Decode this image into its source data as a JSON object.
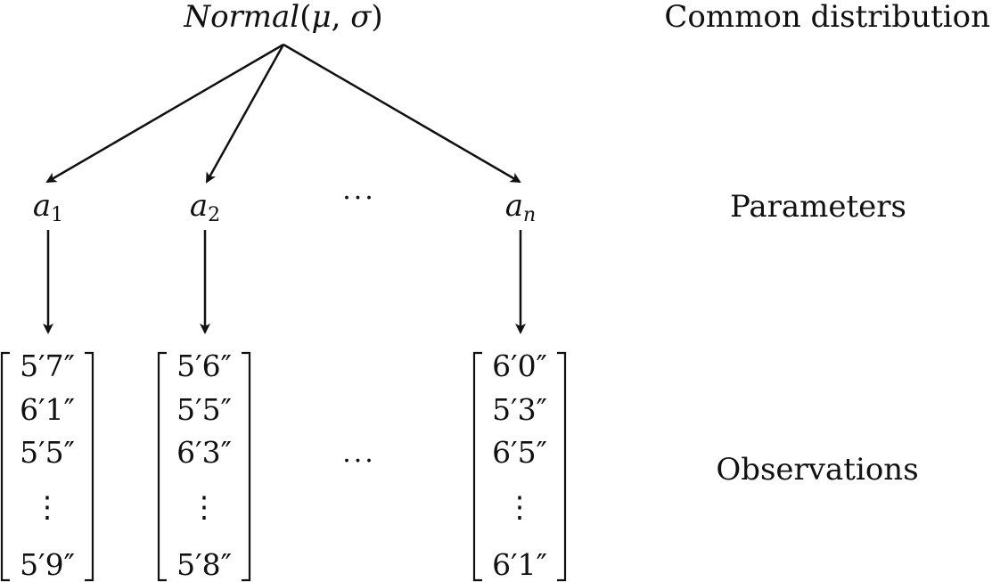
{
  "top_node": {
    "func": "Normal",
    "open": "(",
    "mu": "μ",
    "comma": ",",
    "sigma": "σ",
    "close": ")"
  },
  "row_labels": {
    "common": "Common distribution",
    "parameters": "Parameters",
    "observations": "Observations"
  },
  "parameters": [
    {
      "base": "a",
      "sub": "1"
    },
    {
      "base": "a",
      "sub": "2"
    },
    {
      "base": "a",
      "sub": "n"
    }
  ],
  "param_ellipsis": "···",
  "obs_ellipsis": "···",
  "vertical_ellipsis": "⋮",
  "observations": [
    [
      "5′7″",
      "6′1″",
      "5′5″",
      "5′9″"
    ],
    [
      "5′6″",
      "5′5″",
      "6′3″",
      "5′8″"
    ],
    [
      "6′0″",
      "5′3″",
      "6′5″",
      "6′1″"
    ]
  ],
  "colors": {
    "ink": "#111111",
    "background": "#ffffff"
  }
}
